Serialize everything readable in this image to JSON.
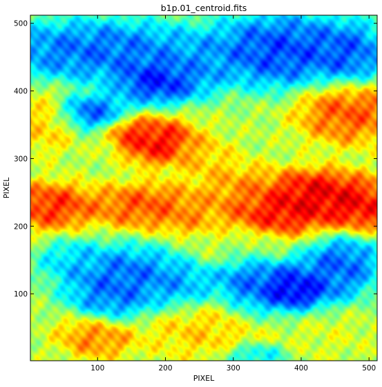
{
  "chart_data": {
    "type": "heatmap",
    "title": "b1p.01_centroid.fits",
    "xlabel": "PIXEL",
    "ylabel": "PIXEL",
    "xlim": [
      1,
      512
    ],
    "ylim": [
      1,
      512
    ],
    "xticks": [
      100,
      200,
      300,
      400,
      500
    ],
    "yticks": [
      100,
      200,
      300,
      400,
      500
    ],
    "colormap": "jet",
    "grid": false,
    "regions": [
      {
        "x": 190,
        "y": 325,
        "sx": 30,
        "sy": 18,
        "value": 0.95
      },
      {
        "x": 150,
        "y": 340,
        "sx": 18,
        "sy": 12,
        "value": 0.85
      },
      {
        "x": 255,
        "y": 300,
        "sx": 25,
        "sy": 18,
        "value": 0.7
      },
      {
        "x": 30,
        "y": 230,
        "sx": 35,
        "sy": 18,
        "value": 0.9
      },
      {
        "x": 170,
        "y": 230,
        "sx": 45,
        "sy": 18,
        "value": 0.85
      },
      {
        "x": 230,
        "y": 215,
        "sx": 25,
        "sy": 15,
        "value": 0.75
      },
      {
        "x": 310,
        "y": 255,
        "sx": 35,
        "sy": 20,
        "value": 0.75
      },
      {
        "x": 370,
        "y": 225,
        "sx": 45,
        "sy": 22,
        "value": 0.95
      },
      {
        "x": 420,
        "y": 250,
        "sx": 35,
        "sy": 18,
        "value": 0.95
      },
      {
        "x": 480,
        "y": 230,
        "sx": 35,
        "sy": 22,
        "value": 0.95
      },
      {
        "x": 470,
        "y": 370,
        "sx": 40,
        "sy": 25,
        "value": 0.85
      },
      {
        "x": 20,
        "y": 355,
        "sx": 25,
        "sy": 25,
        "value": 0.7
      },
      {
        "x": 100,
        "y": 40,
        "sx": 30,
        "sy": 18,
        "value": 0.8
      },
      {
        "x": 260,
        "y": 50,
        "sx": 50,
        "sy": 25,
        "value": 0.7
      },
      {
        "x": 440,
        "y": 40,
        "sx": 35,
        "sy": 20,
        "value": 0.6
      },
      {
        "x": 320,
        "y": 165,
        "sx": 40,
        "sy": 15,
        "value": 0.6
      },
      {
        "x": 100,
        "y": 460,
        "sx": 90,
        "sy": 25,
        "value": 0.15
      },
      {
        "x": 190,
        "y": 415,
        "sx": 35,
        "sy": 18,
        "value": 0.05
      },
      {
        "x": 250,
        "y": 435,
        "sx": 25,
        "sy": 20,
        "value": 0.25
      },
      {
        "x": 370,
        "y": 460,
        "sx": 60,
        "sy": 30,
        "value": 0.1
      },
      {
        "x": 470,
        "y": 455,
        "sx": 30,
        "sy": 25,
        "value": 0.15
      },
      {
        "x": 90,
        "y": 370,
        "sx": 30,
        "sy": 14,
        "value": 0.15
      },
      {
        "x": 140,
        "y": 125,
        "sx": 50,
        "sy": 25,
        "value": 0.15
      },
      {
        "x": 120,
        "y": 90,
        "sx": 30,
        "sy": 20,
        "value": 0.2
      },
      {
        "x": 220,
        "y": 110,
        "sx": 30,
        "sy": 20,
        "value": 0.25
      },
      {
        "x": 365,
        "y": 115,
        "sx": 50,
        "sy": 25,
        "value": 0.1
      },
      {
        "x": 390,
        "y": 105,
        "sx": 25,
        "sy": 12,
        "value": 0.02
      },
      {
        "x": 460,
        "y": 145,
        "sx": 30,
        "sy": 25,
        "value": 0.15
      },
      {
        "x": 320,
        "y": 120,
        "sx": 20,
        "sy": 30,
        "value": 0.25
      },
      {
        "x": 60,
        "y": 150,
        "sx": 25,
        "sy": 15,
        "value": 0.3
      },
      {
        "x": 330,
        "y": 10,
        "sx": 25,
        "sy": 10,
        "value": 0.3
      }
    ]
  }
}
